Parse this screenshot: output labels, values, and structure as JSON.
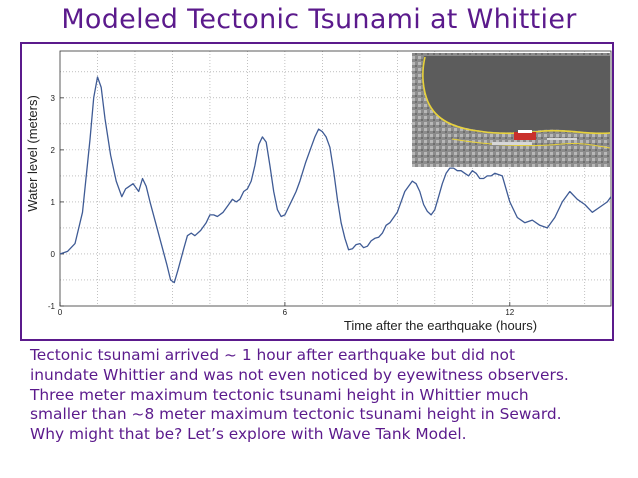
{
  "slide": {
    "title": "Modeled Tectonic Tsunami at Whittier",
    "caption_lines": [
      "Tectonic tsunami arrived ~ 1 hour after earthquake but did not",
      "inundate Whittier and was not even noticed by eyewitness observers.",
      "Three meter maximum tectonic tsunami height in Whittier much",
      "smaller than ~8 meter maximum tectonic tsunami height in Seward.",
      "Why might that be?  Let’s explore with Wave Tank Model."
    ]
  },
  "inset": {
    "icon": "whittier-aerial-map-icon",
    "shoreline_color": "#e8d23a",
    "water_color": "#5c5c5c"
  },
  "chart_data": {
    "type": "line",
    "title": "",
    "xlabel": "Time after the earthquake (hours)",
    "ylabel": "Water level (meters)",
    "xlim": [
      0,
      14.7
    ],
    "ylim": [
      -1,
      3.9
    ],
    "xticks": [
      0,
      6,
      12
    ],
    "yticks": [
      -1,
      0,
      1,
      2,
      3
    ],
    "grid": "dotted",
    "line_color": "#3f5b95",
    "series": [
      {
        "x": [
          0,
          0.2,
          0.4,
          0.6,
          0.8,
          0.9,
          1.0,
          1.1,
          1.2,
          1.35,
          1.5,
          1.65,
          1.75,
          1.85,
          1.95,
          2.1,
          2.2,
          2.3,
          2.4,
          2.55,
          2.7,
          2.85,
          2.95,
          3.05,
          3.15,
          3.3,
          3.4,
          3.5,
          3.6,
          3.75,
          3.9,
          4.0,
          4.1,
          4.2,
          4.35,
          4.5,
          4.6,
          4.7,
          4.8,
          4.9,
          5.0,
          5.1,
          5.2,
          5.3,
          5.4,
          5.5,
          5.6,
          5.7,
          5.8,
          5.9,
          6.0,
          6.1,
          6.2,
          6.3,
          6.4,
          6.55,
          6.7,
          6.8,
          6.9,
          7.0,
          7.1,
          7.2,
          7.3,
          7.4,
          7.5,
          7.6,
          7.7,
          7.8,
          7.9,
          8.0,
          8.1,
          8.2,
          8.3,
          8.4,
          8.5,
          8.6,
          8.7,
          8.8,
          9.0,
          9.2,
          9.4,
          9.5,
          9.6,
          9.7,
          9.8,
          9.9,
          10.0,
          10.1,
          10.2,
          10.3,
          10.4,
          10.5,
          10.6,
          10.7,
          10.8,
          10.9,
          11.0,
          11.1,
          11.2,
          11.3,
          11.4,
          11.5,
          11.6,
          11.8,
          12.0,
          12.2,
          12.4,
          12.6,
          12.8,
          13.0,
          13.2,
          13.4,
          13.6,
          13.8,
          14.0,
          14.2,
          14.4,
          14.6,
          14.7
        ],
        "y": [
          0,
          0.05,
          0.2,
          0.8,
          2.2,
          3.0,
          3.4,
          3.2,
          2.6,
          1.9,
          1.4,
          1.1,
          1.25,
          1.3,
          1.35,
          1.2,
          1.45,
          1.3,
          1.0,
          0.6,
          0.2,
          -0.2,
          -0.5,
          -0.55,
          -0.3,
          0.1,
          0.35,
          0.4,
          0.35,
          0.45,
          0.6,
          0.75,
          0.75,
          0.72,
          0.8,
          0.95,
          1.05,
          1.0,
          1.05,
          1.2,
          1.25,
          1.4,
          1.7,
          2.1,
          2.25,
          2.15,
          1.7,
          1.2,
          0.85,
          0.72,
          0.75,
          0.9,
          1.05,
          1.2,
          1.4,
          1.75,
          2.05,
          2.25,
          2.4,
          2.35,
          2.25,
          2.05,
          1.6,
          1.05,
          0.6,
          0.3,
          0.08,
          0.1,
          0.18,
          0.2,
          0.12,
          0.15,
          0.25,
          0.3,
          0.32,
          0.4,
          0.55,
          0.6,
          0.8,
          1.2,
          1.4,
          1.35,
          1.2,
          0.95,
          0.82,
          0.75,
          0.85,
          1.1,
          1.35,
          1.55,
          1.65,
          1.65,
          1.6,
          1.6,
          1.55,
          1.5,
          1.6,
          1.55,
          1.45,
          1.45,
          1.5,
          1.5,
          1.55,
          1.5,
          1.0,
          0.7,
          0.6,
          0.65,
          0.55,
          0.5,
          0.7,
          1.0,
          1.2,
          1.05,
          0.95,
          0.8,
          0.9,
          1.0,
          1.1
        ]
      }
    ]
  }
}
